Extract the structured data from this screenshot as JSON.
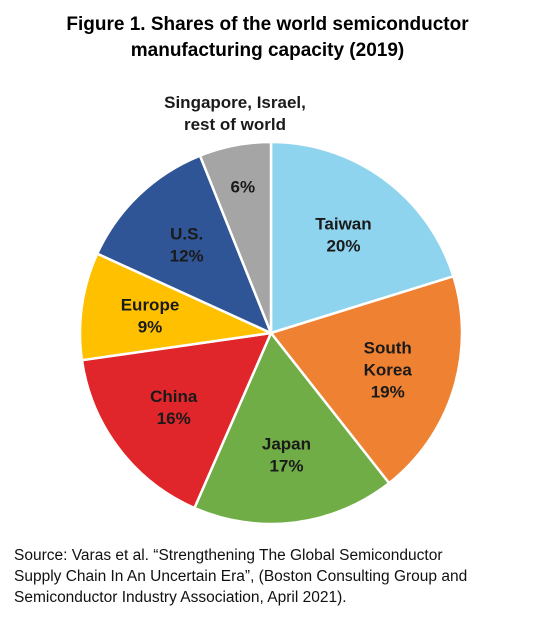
{
  "title_lines": [
    "Figure 1. Shares of the world semiconductor",
    "manufacturing capacity (2019)"
  ],
  "chart_data": {
    "type": "pie",
    "title": "Figure 1. Shares of the world semiconductor manufacturing capacity (2019)",
    "unit": "%",
    "slices": [
      {
        "label_lines": [
          "Taiwan"
        ],
        "value": 20,
        "value_label": "20%",
        "color": "#8fd4ee"
      },
      {
        "label_lines": [
          "South",
          "Korea"
        ],
        "value": 19,
        "value_label": "19%",
        "color": "#ef8132"
      },
      {
        "label_lines": [
          "Japan"
        ],
        "value": 17,
        "value_label": "17%",
        "color": "#70ad47"
      },
      {
        "label_lines": [
          "China"
        ],
        "value": 16,
        "value_label": "16%",
        "color": "#e0262a"
      },
      {
        "label_lines": [
          "Europe"
        ],
        "value": 9,
        "value_label": "9%",
        "color": "#ffc000"
      },
      {
        "label_lines": [
          "U.S."
        ],
        "value": 12,
        "value_label": "12%",
        "color": "#2f5597"
      },
      {
        "label_lines": [
          "Singapore, Israel,",
          "rest of world"
        ],
        "value": 6,
        "value_label": "6%",
        "color": "#a5a5a5",
        "label_outside": true
      }
    ]
  },
  "source_lines": [
    "Source: Varas et al. “Strengthening The Global Semiconductor",
    "Supply Chain In An Uncertain Era”, (Boston Consulting Group and",
    "Semiconductor Industry Association, April 2021)."
  ]
}
